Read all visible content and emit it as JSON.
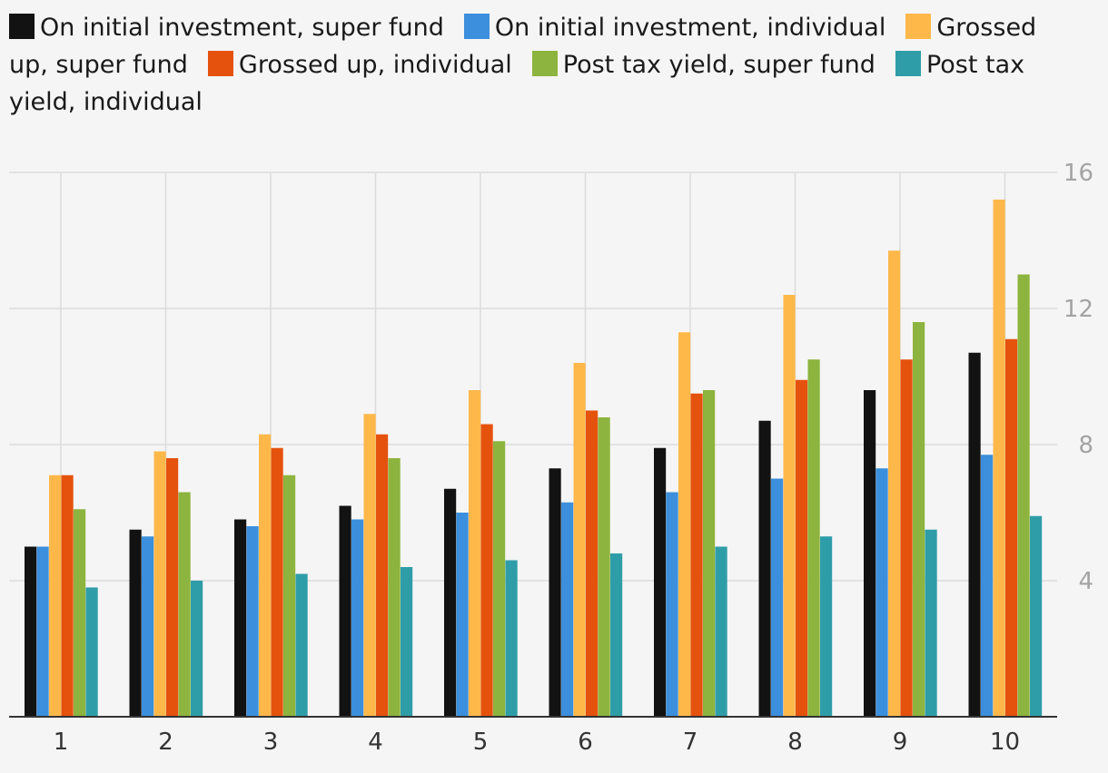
{
  "chart_data": {
    "type": "bar",
    "categories": [
      "1",
      "2",
      "3",
      "4",
      "5",
      "6",
      "7",
      "8",
      "9",
      "10"
    ],
    "series": [
      {
        "name": "On initial investment, super fund",
        "color": "#121212",
        "values": [
          5.0,
          5.5,
          5.8,
          6.2,
          6.7,
          7.3,
          7.9,
          8.7,
          9.6,
          10.7
        ]
      },
      {
        "name": "On initial investment, individual",
        "color": "#3b8fdc",
        "values": [
          5.0,
          5.3,
          5.6,
          5.8,
          6.0,
          6.3,
          6.6,
          7.0,
          7.3,
          7.7
        ]
      },
      {
        "name": "Grossed up, super fund",
        "color": "#feb84a",
        "values": [
          7.1,
          7.8,
          8.3,
          8.9,
          9.6,
          10.4,
          11.3,
          12.4,
          13.7,
          15.2
        ]
      },
      {
        "name": "Grossed up, individual",
        "color": "#e5520e",
        "values": [
          7.1,
          7.6,
          7.9,
          8.3,
          8.6,
          9.0,
          9.5,
          9.9,
          10.5,
          11.1
        ]
      },
      {
        "name": "Post tax yield, super fund",
        "color": "#8db43e",
        "values": [
          6.1,
          6.6,
          7.1,
          7.6,
          8.1,
          8.8,
          9.6,
          10.5,
          11.6,
          13.0
        ]
      },
      {
        "name": "Post tax yield, individual",
        "color": "#2f9da8",
        "values": [
          3.8,
          4.0,
          4.2,
          4.4,
          4.6,
          4.8,
          5.0,
          5.3,
          5.5,
          5.9
        ]
      }
    ],
    "y_ticks": [
      "4",
      "8",
      "12",
      "16"
    ],
    "ylim": [
      0,
      16
    ],
    "grid": true,
    "legend_position": "top",
    "y_axis_side": "right"
  }
}
